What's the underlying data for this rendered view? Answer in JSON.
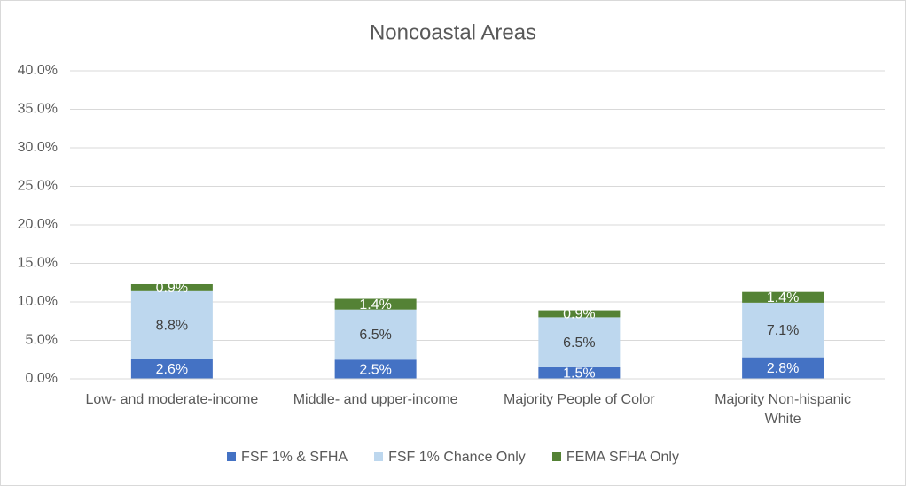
{
  "chart_data": {
    "type": "stacked_bar",
    "title": "Noncoastal Areas",
    "categories": [
      "Low- and moderate-income",
      "Middle- and upper-income",
      "Majority People of Color",
      "Majority Non-hispanic White"
    ],
    "series": [
      {
        "name": "FSF 1% & SFHA",
        "color": "#4472c4",
        "values": [
          2.6,
          2.5,
          1.5,
          2.8
        ],
        "value_labels": [
          "2.6%",
          "2.5%",
          "1.5%",
          "2.8%"
        ]
      },
      {
        "name": "FSF 1% Chance Only",
        "color": "#bdd7ee",
        "values": [
          8.8,
          6.5,
          6.5,
          7.1
        ],
        "value_labels": [
          "8.8%",
          "6.5%",
          "6.5%",
          "7.1%"
        ]
      },
      {
        "name": "FEMA SFHA Only",
        "color": "#548235",
        "values": [
          0.9,
          1.4,
          0.9,
          1.4
        ],
        "value_labels": [
          "0.9%",
          "1.4%",
          "0.9%",
          "1.4%"
        ]
      }
    ],
    "ylim": [
      0,
      40
    ],
    "yticks": [
      {
        "value": 0,
        "label": "0.0%"
      },
      {
        "value": 5,
        "label": "5.0%"
      },
      {
        "value": 10,
        "label": "10.0%"
      },
      {
        "value": 15,
        "label": "15.0%"
      },
      {
        "value": 20,
        "label": "20.0%"
      },
      {
        "value": 25,
        "label": "25.0%"
      },
      {
        "value": 30,
        "label": "30.0%"
      },
      {
        "value": 35,
        "label": "35.0%"
      },
      {
        "value": 40,
        "label": "40.0%"
      }
    ],
    "grid": true,
    "legend": "bottom"
  }
}
